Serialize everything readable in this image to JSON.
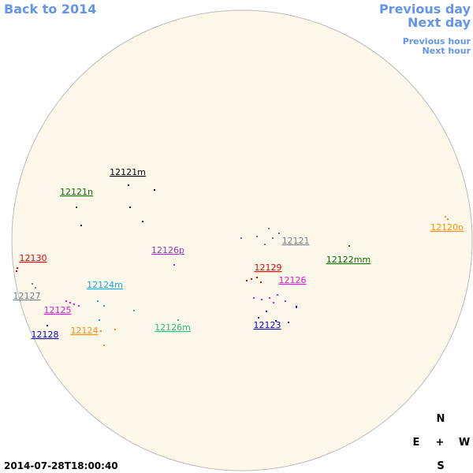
{
  "nav": {
    "back": "Back to 2014",
    "previous_day": "Previous day",
    "next_day": "Next day",
    "previous_hour": "Previous hour",
    "next_hour": "Next hour"
  },
  "regions": [
    {
      "label": "12121m",
      "color": "#000000"
    },
    {
      "label": "12121n",
      "color": "#007000"
    },
    {
      "label": "12126p",
      "color": "#9932cc"
    },
    {
      "label": "12121",
      "color": "#708090"
    },
    {
      "label": "12122mm",
      "color": "#007000"
    },
    {
      "label": "12120o",
      "color": "#ff8c00"
    },
    {
      "label": "12130",
      "color": "#e00000"
    },
    {
      "label": "12129",
      "color": "#e00000"
    },
    {
      "label": "12126",
      "color": "#e010e0"
    },
    {
      "label": "12124m",
      "color": "#00b0e0"
    },
    {
      "label": "12127",
      "color": "#708090"
    },
    {
      "label": "12125",
      "color": "#e010e0"
    },
    {
      "label": "12123",
      "color": "#0000c0"
    },
    {
      "label": "12128",
      "color": "#0000c0"
    },
    {
      "label": "12124",
      "color": "#ff8c00"
    },
    {
      "label": "12126m",
      "color": "#20c080"
    }
  ],
  "compass": {
    "north": "N",
    "east": "E",
    "center": "+",
    "west": "W",
    "south": "S"
  },
  "timestamp": "2014-07-28T18:00:40"
}
